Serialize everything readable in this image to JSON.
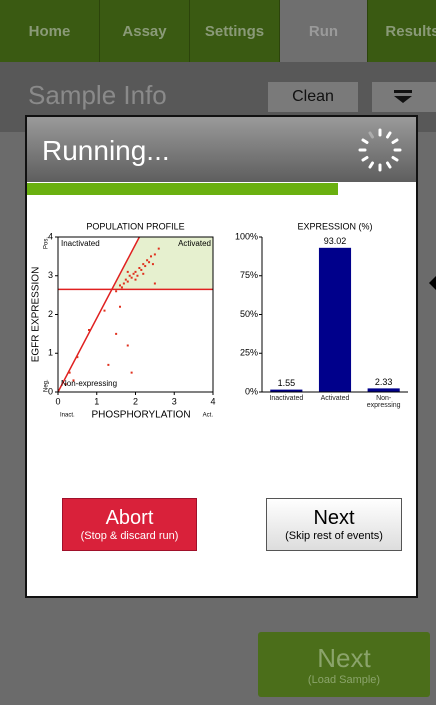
{
  "nav": {
    "tabs": [
      "Home",
      "Assay",
      "Settings",
      "Run",
      "Results"
    ]
  },
  "header": {
    "title": "Sample Info",
    "clean_button": "Clean"
  },
  "dialog": {
    "title": "Running...",
    "abort": {
      "label": "Abort",
      "sub": "(Stop & discard run)"
    },
    "next": {
      "label": "Next",
      "sub": "(Skip rest of events)"
    }
  },
  "footer": {
    "next": {
      "label": "Next",
      "sub": "(Load Sample)"
    }
  },
  "chart_data": [
    {
      "type": "scatter",
      "title": "POPULATION PROFILE",
      "x_label": "PHOSPHORYLATION",
      "y_label": "EGFR EXPRESSION",
      "x_end_labels": [
        "Inact.",
        "Act."
      ],
      "y_end_labels": [
        "Neg.",
        "Pos."
      ],
      "region_labels": [
        "Inactivated",
        "Activated",
        "Non-expressing"
      ],
      "xlim": [
        0,
        4
      ],
      "ylim": [
        0,
        4
      ],
      "xticks": [
        0,
        1,
        2,
        3,
        4
      ],
      "yticks": [
        0,
        1,
        2,
        3,
        4
      ],
      "color": "#e0301e",
      "series": [
        {
          "x": [
            1.5,
            1.6,
            1.7,
            1.75,
            1.8,
            1.85,
            1.9,
            1.95,
            2.0,
            2.05,
            2.1,
            2.15,
            2.2,
            2.25,
            2.3,
            2.35,
            2.4,
            2.5,
            2.6,
            1.65,
            2.0,
            1.8,
            2.2,
            2.45,
            0.3,
            0.5,
            0.2,
            0.8,
            1.2,
            1.5,
            1.8,
            1.9,
            1.3,
            1.6,
            2.5,
            0.4
          ],
          "y": [
            2.6,
            2.75,
            2.8,
            2.9,
            2.85,
            3.0,
            2.95,
            3.05,
            3.1,
            3.0,
            3.2,
            3.15,
            3.3,
            3.25,
            3.4,
            3.35,
            3.5,
            3.55,
            3.7,
            2.7,
            2.9,
            3.1,
            3.05,
            3.3,
            0.5,
            0.9,
            0.2,
            1.6,
            2.1,
            1.5,
            1.2,
            0.5,
            0.7,
            2.2,
            2.8,
            0.3
          ]
        }
      ]
    },
    {
      "type": "bar",
      "title": "EXPRESSION (%)",
      "categories": [
        "Inactivated",
        "Activated",
        "Non-expressing"
      ],
      "values": [
        1.55,
        93.02,
        2.33
      ],
      "color": "#00008b",
      "ylim": [
        0,
        100
      ],
      "yticks": [
        {
          "value": 0,
          "label": "0%"
        },
        {
          "value": 25,
          "label": "25%"
        },
        {
          "value": 50,
          "label": "50%"
        },
        {
          "value": 75,
          "label": "75%"
        },
        {
          "value": 100,
          "label": "100%"
        }
      ]
    }
  ]
}
